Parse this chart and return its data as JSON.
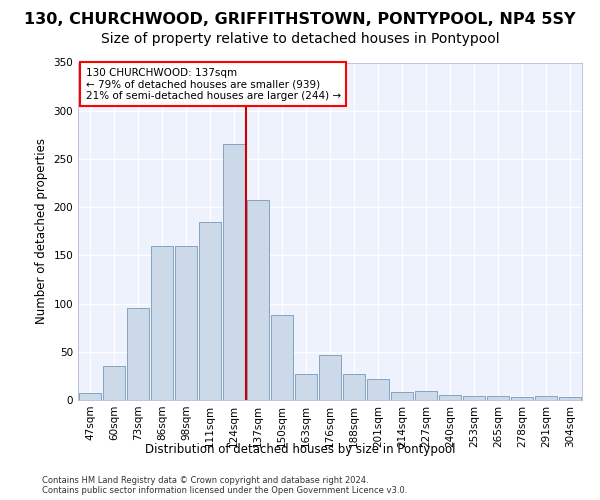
{
  "title_line1": "130, CHURCHWOOD, GRIFFITHSTOWN, PONTYPOOL, NP4 5SY",
  "title_line2": "Size of property relative to detached houses in Pontypool",
  "xlabel": "Distribution of detached houses by size in Pontypool",
  "ylabel": "Number of detached properties",
  "footnote1": "Contains HM Land Registry data © Crown copyright and database right 2024.",
  "footnote2": "Contains public sector information licensed under the Open Government Licence v3.0.",
  "annotation_line1": "130 CHURCHWOOD: 137sqm",
  "annotation_line2": "← 79% of detached houses are smaller (939)",
  "annotation_line3": "21% of semi-detached houses are larger (244) →",
  "bar_color": "#ccd9e8",
  "bar_edge_color": "#7799bb",
  "vline_color": "#cc0000",
  "vline_x": 6.5,
  "categories": [
    "47sqm",
    "60sqm",
    "73sqm",
    "86sqm",
    "98sqm",
    "111sqm",
    "124sqm",
    "137sqm",
    "150sqm",
    "163sqm",
    "176sqm",
    "188sqm",
    "201sqm",
    "214sqm",
    "227sqm",
    "240sqm",
    "253sqm",
    "265sqm",
    "278sqm",
    "291sqm",
    "304sqm"
  ],
  "values": [
    7,
    35,
    95,
    160,
    160,
    185,
    265,
    207,
    88,
    27,
    47,
    27,
    22,
    8,
    9,
    5,
    4,
    4,
    3,
    4,
    3
  ],
  "ylim": [
    0,
    350
  ],
  "yticks": [
    0,
    50,
    100,
    150,
    200,
    250,
    300,
    350
  ],
  "bg_color": "#eef2fc",
  "grid_color": "#ffffff",
  "title_fontsize": 11.5,
  "subtitle_fontsize": 10,
  "axis_label_fontsize": 8.5,
  "tick_fontsize": 7.5,
  "annotation_fontsize": 7.5
}
